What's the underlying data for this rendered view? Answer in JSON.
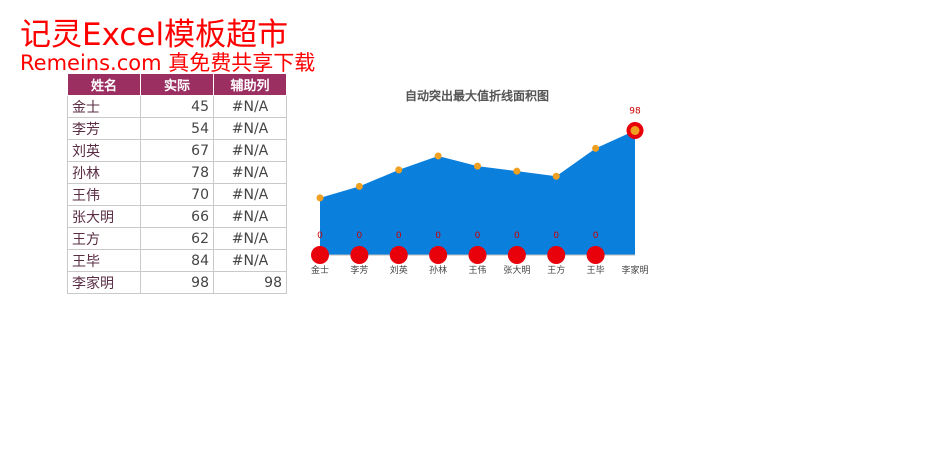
{
  "watermark": {
    "line1": "记灵Excel模板超市",
    "line2": "Remeins.com 真免费共享下载"
  },
  "table": {
    "headers": [
      "姓名",
      "实际",
      "辅助列"
    ],
    "rows": [
      {
        "name": "金士",
        "actual": "45",
        "aux": "#N/A"
      },
      {
        "name": "李芳",
        "actual": "54",
        "aux": "#N/A"
      },
      {
        "name": "刘英",
        "actual": "67",
        "aux": "#N/A"
      },
      {
        "name": "孙林",
        "actual": "78",
        "aux": "#N/A"
      },
      {
        "name": "王伟",
        "actual": "70",
        "aux": "#N/A"
      },
      {
        "name": "张大明",
        "actual": "66",
        "aux": "#N/A"
      },
      {
        "name": "王方",
        "actual": "62",
        "aux": "#N/A"
      },
      {
        "name": "王毕",
        "actual": "84",
        "aux": "#N/A"
      },
      {
        "name": "李家明",
        "actual": "98",
        "aux": "98"
      }
    ]
  },
  "chart_data": {
    "type": "area",
    "title": "自动突出最大值折线面积图",
    "categories": [
      "金士",
      "李芳",
      "刘英",
      "孙林",
      "王伟",
      "张大明",
      "王方",
      "王毕",
      "李家明"
    ],
    "series": [
      {
        "name": "实际",
        "values": [
          45,
          54,
          67,
          78,
          70,
          66,
          62,
          84,
          98
        ]
      },
      {
        "name": "辅助列",
        "values": [
          0,
          0,
          0,
          0,
          0,
          0,
          0,
          0,
          98
        ]
      }
    ],
    "aux_labels": [
      "0",
      "0",
      "0",
      "0",
      "0",
      "0",
      "0",
      "0"
    ],
    "max_label": "98",
    "colors": {
      "area": "#0a7fdc",
      "marker": "#f0a020",
      "highlight": "#e8000b"
    },
    "grid": false
  }
}
